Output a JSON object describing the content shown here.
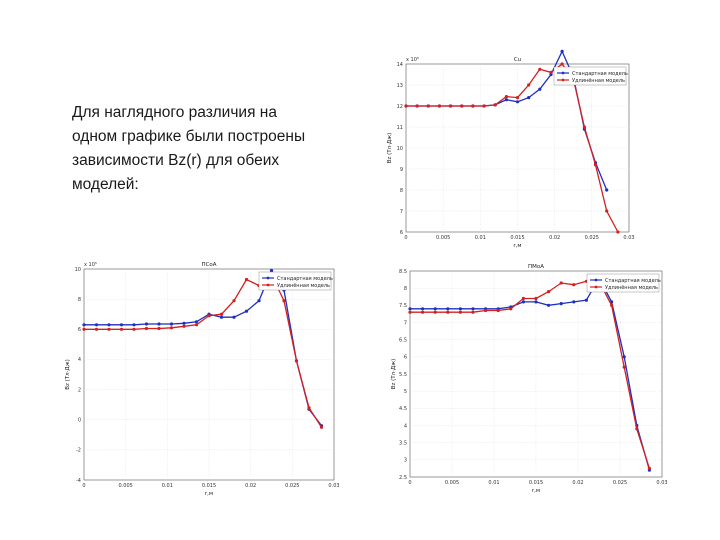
{
  "slide": {
    "text": "Для  наглядного различия на\nодном графике были построены\nзависимости Bz(r) для обеих\nмоделей:"
  },
  "colors": {
    "series_a": "#1f2fbf",
    "series_b": "#d42020"
  },
  "chart_data": [
    {
      "type": "line",
      "title": "Cu",
      "xlabel": "r,м",
      "ylabel": "Bz (Тл·Дж)",
      "exponent": "x 10⁵",
      "xlim": [
        0,
        0.03
      ],
      "ylim": [
        6,
        14
      ],
      "xticks": [
        "0",
        "0.005",
        "0.01",
        "0.015",
        "0.02",
        "0.025",
        "0.03"
      ],
      "yticks": [
        "6",
        "7",
        "8",
        "9",
        "10",
        "11",
        "12",
        "13",
        "14"
      ],
      "legend": "top-right",
      "grid": true,
      "series": [
        {
          "name": "Стандартная модель",
          "color": "#1f2fbf",
          "x": [
            0,
            0.0015,
            0.003,
            0.0045,
            0.006,
            0.0075,
            0.009,
            0.0105,
            0.012,
            0.0135,
            0.015,
            0.0165,
            0.018,
            0.0195,
            0.021,
            0.0225,
            0.024,
            0.0255,
            0.027
          ],
          "y": [
            12.0,
            12.0,
            12.0,
            12.0,
            12.0,
            12.0,
            12.0,
            12.0,
            12.05,
            12.3,
            12.2,
            12.4,
            12.8,
            13.5,
            14.6,
            13.4,
            10.9,
            9.3,
            8.0
          ]
        },
        {
          "name": "Удлинённая модель",
          "color": "#d42020",
          "x": [
            0,
            0.0015,
            0.003,
            0.0045,
            0.006,
            0.0075,
            0.009,
            0.0105,
            0.012,
            0.0135,
            0.015,
            0.0165,
            0.018,
            0.0195,
            0.021,
            0.0225,
            0.024,
            0.0255,
            0.027,
            0.0285
          ],
          "y": [
            12.0,
            12.0,
            12.0,
            12.0,
            12.0,
            12.0,
            12.0,
            12.0,
            12.05,
            12.45,
            12.4,
            13.0,
            13.75,
            13.6,
            14.0,
            13.3,
            11.0,
            9.2,
            7.0,
            6.0
          ]
        }
      ]
    },
    {
      "type": "line",
      "title": "ПСоА",
      "xlabel": "r,м",
      "ylabel": "Bz (Тл·Дж)",
      "exponent": "x 10⁵",
      "xlim": [
        0,
        0.03
      ],
      "ylim": [
        -4,
        10
      ],
      "xticks": [
        "0",
        "0.005",
        "0.01",
        "0.015",
        "0.02",
        "0.025",
        "0.03"
      ],
      "yticks": [
        "-4",
        "-2",
        "0",
        "2",
        "4",
        "6",
        "8",
        "10"
      ],
      "legend": "top-right",
      "grid": true,
      "series": [
        {
          "name": "Стандартная модель",
          "color": "#1f2fbf",
          "x": [
            0,
            0.0015,
            0.003,
            0.0045,
            0.006,
            0.0075,
            0.009,
            0.0105,
            0.012,
            0.0135,
            0.015,
            0.0165,
            0.018,
            0.0195,
            0.021,
            0.0225,
            0.024,
            0.0255,
            0.027,
            0.0285
          ],
          "y": [
            6.3,
            6.3,
            6.3,
            6.3,
            6.3,
            6.35,
            6.35,
            6.35,
            6.4,
            6.5,
            7.0,
            6.8,
            6.8,
            7.2,
            7.9,
            9.9,
            8.6,
            3.9,
            0.7,
            -0.4
          ]
        },
        {
          "name": "Удлинённая модель",
          "color": "#d42020",
          "x": [
            0,
            0.0015,
            0.003,
            0.0045,
            0.006,
            0.0075,
            0.009,
            0.0105,
            0.012,
            0.0135,
            0.015,
            0.0165,
            0.018,
            0.0195,
            0.021,
            0.0225,
            0.024,
            0.0255,
            0.027,
            0.0285
          ],
          "y": [
            6.0,
            6.0,
            6.0,
            6.0,
            6.0,
            6.05,
            6.05,
            6.1,
            6.2,
            6.3,
            6.9,
            7.0,
            7.9,
            9.3,
            8.9,
            9.6,
            7.9,
            3.9,
            0.8,
            -0.5
          ]
        }
      ]
    },
    {
      "type": "line",
      "title": "ПМоА",
      "xlabel": "r,м",
      "ylabel": "Bz (Тл·Дж)",
      "exponent": "",
      "xlim": [
        0,
        0.03
      ],
      "ylim": [
        2.5,
        8.5
      ],
      "xticks": [
        "0",
        "0.005",
        "0.01",
        "0.015",
        "0.02",
        "0.025",
        "0.03"
      ],
      "yticks": [
        "2.5",
        "3",
        "3.5",
        "4",
        "4.5",
        "5",
        "5.5",
        "6",
        "6.5",
        "7",
        "7.5",
        "8",
        "8.5"
      ],
      "legend": "top-right",
      "grid": true,
      "series": [
        {
          "name": "Стандартная модель",
          "color": "#1f2fbf",
          "x": [
            0,
            0.0015,
            0.003,
            0.0045,
            0.006,
            0.0075,
            0.009,
            0.0105,
            0.012,
            0.0135,
            0.015,
            0.0165,
            0.018,
            0.0195,
            0.021,
            0.0225,
            0.024,
            0.0255,
            0.027,
            0.0285
          ],
          "y": [
            7.4,
            7.4,
            7.4,
            7.4,
            7.4,
            7.4,
            7.4,
            7.4,
            7.45,
            7.6,
            7.6,
            7.5,
            7.55,
            7.6,
            7.65,
            8.3,
            7.6,
            6.0,
            4.0,
            2.7
          ]
        },
        {
          "name": "Удлинённая модель",
          "color": "#d42020",
          "x": [
            0,
            0.0015,
            0.003,
            0.0045,
            0.006,
            0.0075,
            0.009,
            0.0105,
            0.012,
            0.0135,
            0.015,
            0.0165,
            0.018,
            0.0195,
            0.021,
            0.0225,
            0.024,
            0.0255,
            0.027,
            0.0285
          ],
          "y": [
            7.3,
            7.3,
            7.3,
            7.3,
            7.3,
            7.3,
            7.35,
            7.35,
            7.4,
            7.7,
            7.7,
            7.9,
            8.15,
            8.1,
            8.2,
            8.2,
            7.5,
            5.7,
            3.9,
            2.75
          ]
        }
      ]
    }
  ]
}
